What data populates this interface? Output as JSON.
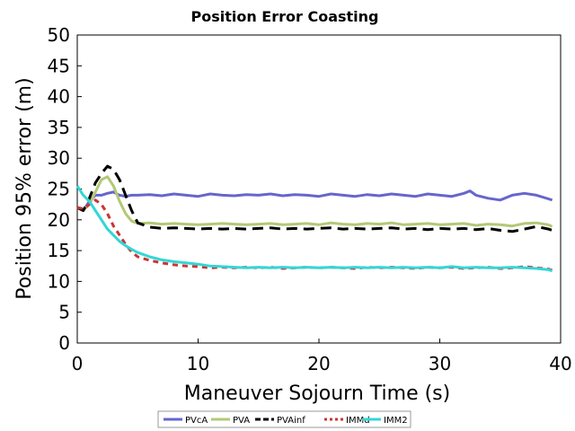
{
  "chart_data": {
    "type": "line",
    "title": "Position Error Coasting",
    "xlabel": "Maneuver Sojourn Time (s)",
    "ylabel": "Position 95% error (m)",
    "xlim": [
      0,
      40
    ],
    "ylim": [
      0,
      50
    ],
    "xticks": [
      0,
      10,
      20,
      30,
      40
    ],
    "yticks": [
      0,
      5,
      10,
      15,
      20,
      25,
      30,
      35,
      40,
      45,
      50
    ],
    "grid": false,
    "legend_position": "bottom",
    "series": [
      {
        "name": "PVcA",
        "color": "#6666cc",
        "dash": "solid",
        "x": [
          0,
          0.5,
          1,
          1.5,
          2,
          2.5,
          3,
          3.5,
          4,
          4.5,
          5,
          6,
          7,
          8,
          9,
          10,
          11,
          12,
          13,
          14,
          15,
          16,
          17,
          18,
          19,
          20,
          21,
          22,
          23,
          24,
          25,
          26,
          27,
          28,
          29,
          30,
          31,
          32,
          32.5,
          33,
          34,
          35,
          36,
          37,
          38,
          39,
          39.3
        ],
        "y": [
          22,
          21.5,
          23,
          24,
          24,
          24.3,
          24.5,
          24,
          23.8,
          24,
          24,
          24.1,
          23.9,
          24.2,
          24,
          23.8,
          24.2,
          24,
          23.9,
          24.1,
          24,
          24.2,
          23.9,
          24.1,
          24,
          23.8,
          24.2,
          24,
          23.8,
          24.1,
          23.9,
          24.2,
          24,
          23.8,
          24.2,
          24,
          23.8,
          24.3,
          24.7,
          24,
          23.5,
          23.2,
          24,
          24.3,
          24,
          23.4,
          23.2
        ]
      },
      {
        "name": "PVA",
        "color": "#b3c876",
        "dash": "solid",
        "x": [
          0,
          0.5,
          1,
          1.5,
          2,
          2.5,
          3,
          3.5,
          4,
          4.5,
          5,
          6,
          7,
          8,
          9,
          10,
          11,
          12,
          13,
          14,
          15,
          16,
          17,
          18,
          19,
          20,
          21,
          22,
          23,
          24,
          25,
          26,
          27,
          28,
          29,
          30,
          31,
          32,
          33,
          34,
          35,
          36,
          37,
          38,
          39,
          39.3
        ],
        "y": [
          22,
          21.5,
          22.5,
          24.5,
          26.5,
          27,
          25.5,
          23,
          21,
          19.8,
          19.4,
          19.5,
          19.3,
          19.4,
          19.3,
          19.2,
          19.3,
          19.4,
          19.3,
          19.2,
          19.3,
          19.4,
          19.2,
          19.3,
          19.4,
          19.2,
          19.5,
          19.3,
          19.2,
          19.4,
          19.3,
          19.5,
          19.2,
          19.3,
          19.4,
          19.2,
          19.3,
          19.4,
          19.1,
          19.3,
          19.2,
          19,
          19.4,
          19.5,
          19.2,
          18.9
        ]
      },
      {
        "name": "PVAinf",
        "color": "#000000",
        "dash": "long",
        "x": [
          0,
          0.5,
          1,
          1.5,
          2,
          2.5,
          3,
          3.5,
          4,
          4.5,
          5,
          6,
          7,
          8,
          9,
          10,
          11,
          12,
          13,
          14,
          15,
          16,
          17,
          18,
          19,
          20,
          21,
          22,
          23,
          24,
          25,
          26,
          27,
          28,
          29,
          30,
          31,
          32,
          33,
          34,
          35,
          36,
          37,
          38,
          39,
          39.3
        ],
        "y": [
          22,
          21.5,
          23.5,
          26,
          27.5,
          28.7,
          28.2,
          26.5,
          24,
          21.5,
          19.5,
          18.8,
          18.6,
          18.7,
          18.6,
          18.5,
          18.6,
          18.5,
          18.6,
          18.5,
          18.6,
          18.7,
          18.5,
          18.6,
          18.5,
          18.6,
          18.7,
          18.5,
          18.6,
          18.5,
          18.6,
          18.7,
          18.5,
          18.6,
          18.4,
          18.6,
          18.5,
          18.6,
          18.4,
          18.6,
          18.3,
          18.1,
          18.5,
          18.9,
          18.5,
          18.3
        ]
      },
      {
        "name": "IMMd",
        "color": "#cc3333",
        "dash": "short",
        "x": [
          0,
          0.5,
          1,
          1.5,
          2,
          2.5,
          3,
          3.5,
          4,
          4.5,
          5,
          6,
          7,
          8,
          9,
          10,
          11,
          12,
          13,
          14,
          15,
          16,
          17,
          18,
          19,
          20,
          21,
          22,
          23,
          24,
          25,
          26,
          27,
          28,
          29,
          30,
          31,
          32,
          33,
          34,
          35,
          36,
          37,
          38,
          39,
          39.3
        ],
        "y": [
          22,
          21.8,
          22.5,
          23.2,
          22.5,
          21,
          19,
          17.5,
          16,
          14.8,
          14,
          13.4,
          13,
          12.7,
          12.5,
          12.4,
          12.2,
          12.3,
          12.2,
          12.3,
          12.2,
          12.3,
          12.1,
          12.2,
          12.3,
          12.2,
          12.3,
          12.2,
          12.1,
          12.3,
          12.2,
          12.3,
          12.2,
          12.1,
          12.3,
          12.2,
          12.3,
          12.1,
          12.2,
          12.3,
          12.1,
          12.2,
          12.4,
          12.2,
          12,
          11.8
        ]
      },
      {
        "name": "IMM2",
        "color": "#33d6d6",
        "dash": "solid",
        "x": [
          0,
          0.5,
          1,
          1.5,
          2,
          2.5,
          3,
          3.5,
          4,
          4.5,
          5,
          6,
          7,
          8,
          9,
          10,
          11,
          12,
          13,
          14,
          15,
          16,
          17,
          18,
          19,
          20,
          21,
          22,
          23,
          24,
          25,
          26,
          27,
          28,
          29,
          30,
          31,
          32,
          33,
          34,
          35,
          36,
          37,
          38,
          39,
          39.3
        ],
        "y": [
          25.5,
          24,
          23,
          21.5,
          20,
          18.5,
          17.5,
          16.5,
          15.8,
          15.2,
          14.7,
          14,
          13.5,
          13.2,
          13,
          12.8,
          12.5,
          12.4,
          12.3,
          12.2,
          12.3,
          12.2,
          12.3,
          12.2,
          12.3,
          12.2,
          12.3,
          12.2,
          12.3,
          12.2,
          12.3,
          12.2,
          12.3,
          12.2,
          12.3,
          12.2,
          12.4,
          12.2,
          12.3,
          12.2,
          12.2,
          12.3,
          12.2,
          12.1,
          11.9,
          11.7
        ]
      }
    ]
  }
}
